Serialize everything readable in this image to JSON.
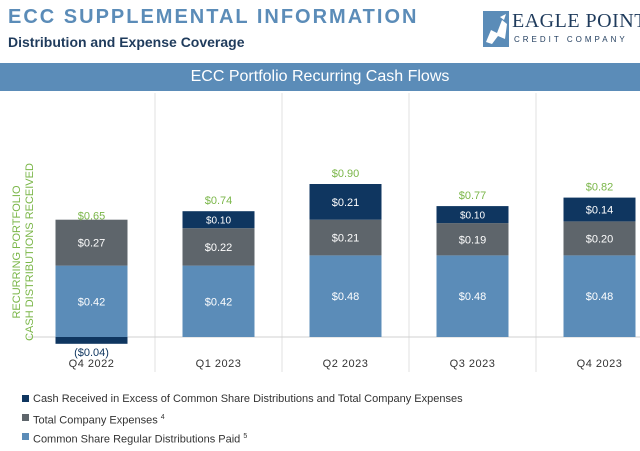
{
  "header": {
    "title": "ECC SUPPLEMENTAL INFORMATION",
    "subtitle": "Distribution and Expense Coverage"
  },
  "logo": {
    "name": "EAGLE POINT",
    "tagline": "CREDIT COMPANY"
  },
  "colors": {
    "distributions": "#5b8cb8",
    "expenses": "#5e656b",
    "excess": "#0f3660",
    "total_label": "#7ab648",
    "banner": "#5b8cb8"
  },
  "chart_data": {
    "type": "bar",
    "stacked": true,
    "title": "ECC Portfolio Recurring Cash Flows",
    "ylabel": "RECURRING PORTFOLIO CASH DISTRIBUTIONS RECEIVED",
    "ylabel_lines": [
      "RECURRING PORTFOLIO",
      "CASH DISTRIBUTIONS RECEIVED"
    ],
    "categories": [
      "Q4 2022",
      "Q1 2023",
      "Q2 2023",
      "Q3 2023",
      "Q4 2023"
    ],
    "series": [
      {
        "name": "Common Share Regular Distributions Paid",
        "footnote": "5",
        "values": [
          0.42,
          0.42,
          0.48,
          0.48,
          0.48
        ],
        "labels": [
          "$0.42",
          "$0.42",
          "$0.48",
          "$0.48",
          "$0.48"
        ]
      },
      {
        "name": "Total Company Expenses",
        "footnote": "4",
        "values": [
          0.27,
          0.22,
          0.21,
          0.19,
          0.2
        ],
        "labels": [
          "$0.27",
          "$0.22",
          "$0.21",
          "$0.19",
          "$0.20"
        ]
      },
      {
        "name": "Cash Received in Excess of Common Share Distributions and Total Company Expenses",
        "footnote": "",
        "values": [
          -0.04,
          0.1,
          0.21,
          0.1,
          0.14
        ],
        "labels": [
          "($0.04)",
          "$0.10",
          "$0.21",
          "$0.10",
          "$0.14"
        ]
      }
    ],
    "totals": [
      0.65,
      0.74,
      0.9,
      0.77,
      0.82
    ],
    "total_labels": [
      "$0.65",
      "$0.74",
      "$0.90",
      "$0.77",
      "$0.82"
    ],
    "ylim": [
      -0.04,
      1.0
    ],
    "grid": false,
    "legend_position": "bottom-left"
  }
}
